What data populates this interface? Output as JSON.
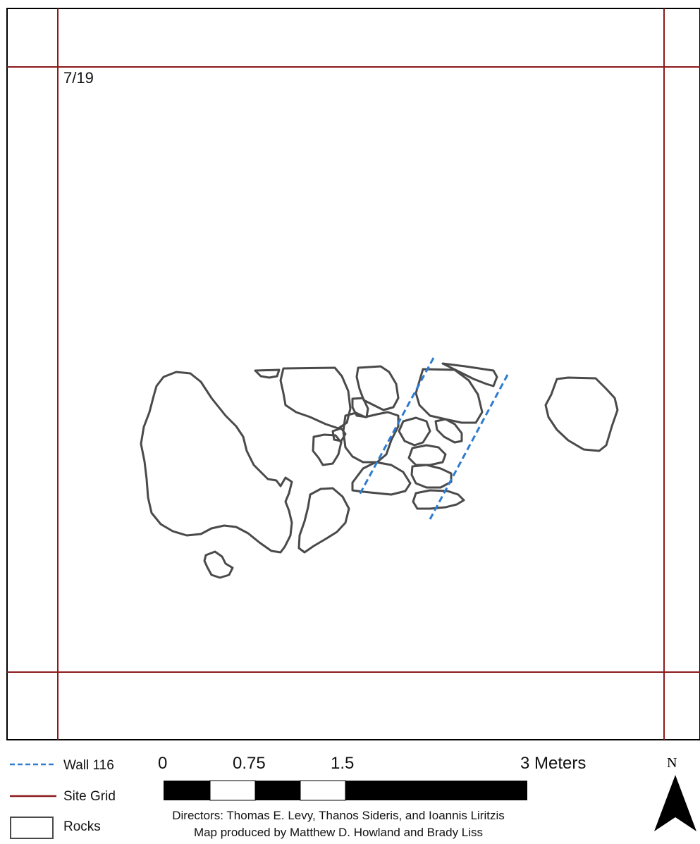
{
  "map": {
    "grid_label": "7/19",
    "colors": {
      "rock_outline": "#4a4a4a",
      "site_grid": "#8b1a1a",
      "wall": "#2f7bd0",
      "frame": "#000000"
    }
  },
  "legend": {
    "items": [
      {
        "label": "Wall 116",
        "symbol": "dashed-blue-line"
      },
      {
        "label": "Site Grid",
        "symbol": "solid-red-line"
      },
      {
        "label": "Rocks",
        "symbol": "outlined-box"
      }
    ]
  },
  "scale_bar": {
    "ticks": [
      "0",
      "0.75",
      "1.5",
      "3 Meters"
    ]
  },
  "north_arrow": {
    "label": "N",
    "icon": "north-arrow-icon"
  },
  "credits": {
    "line1": "Directors: Thomas E. Levy, Thanos Sideris, and Ioannis Liritzis",
    "line2": "Map produced by Matthew D. Howland and Brady Liss"
  }
}
